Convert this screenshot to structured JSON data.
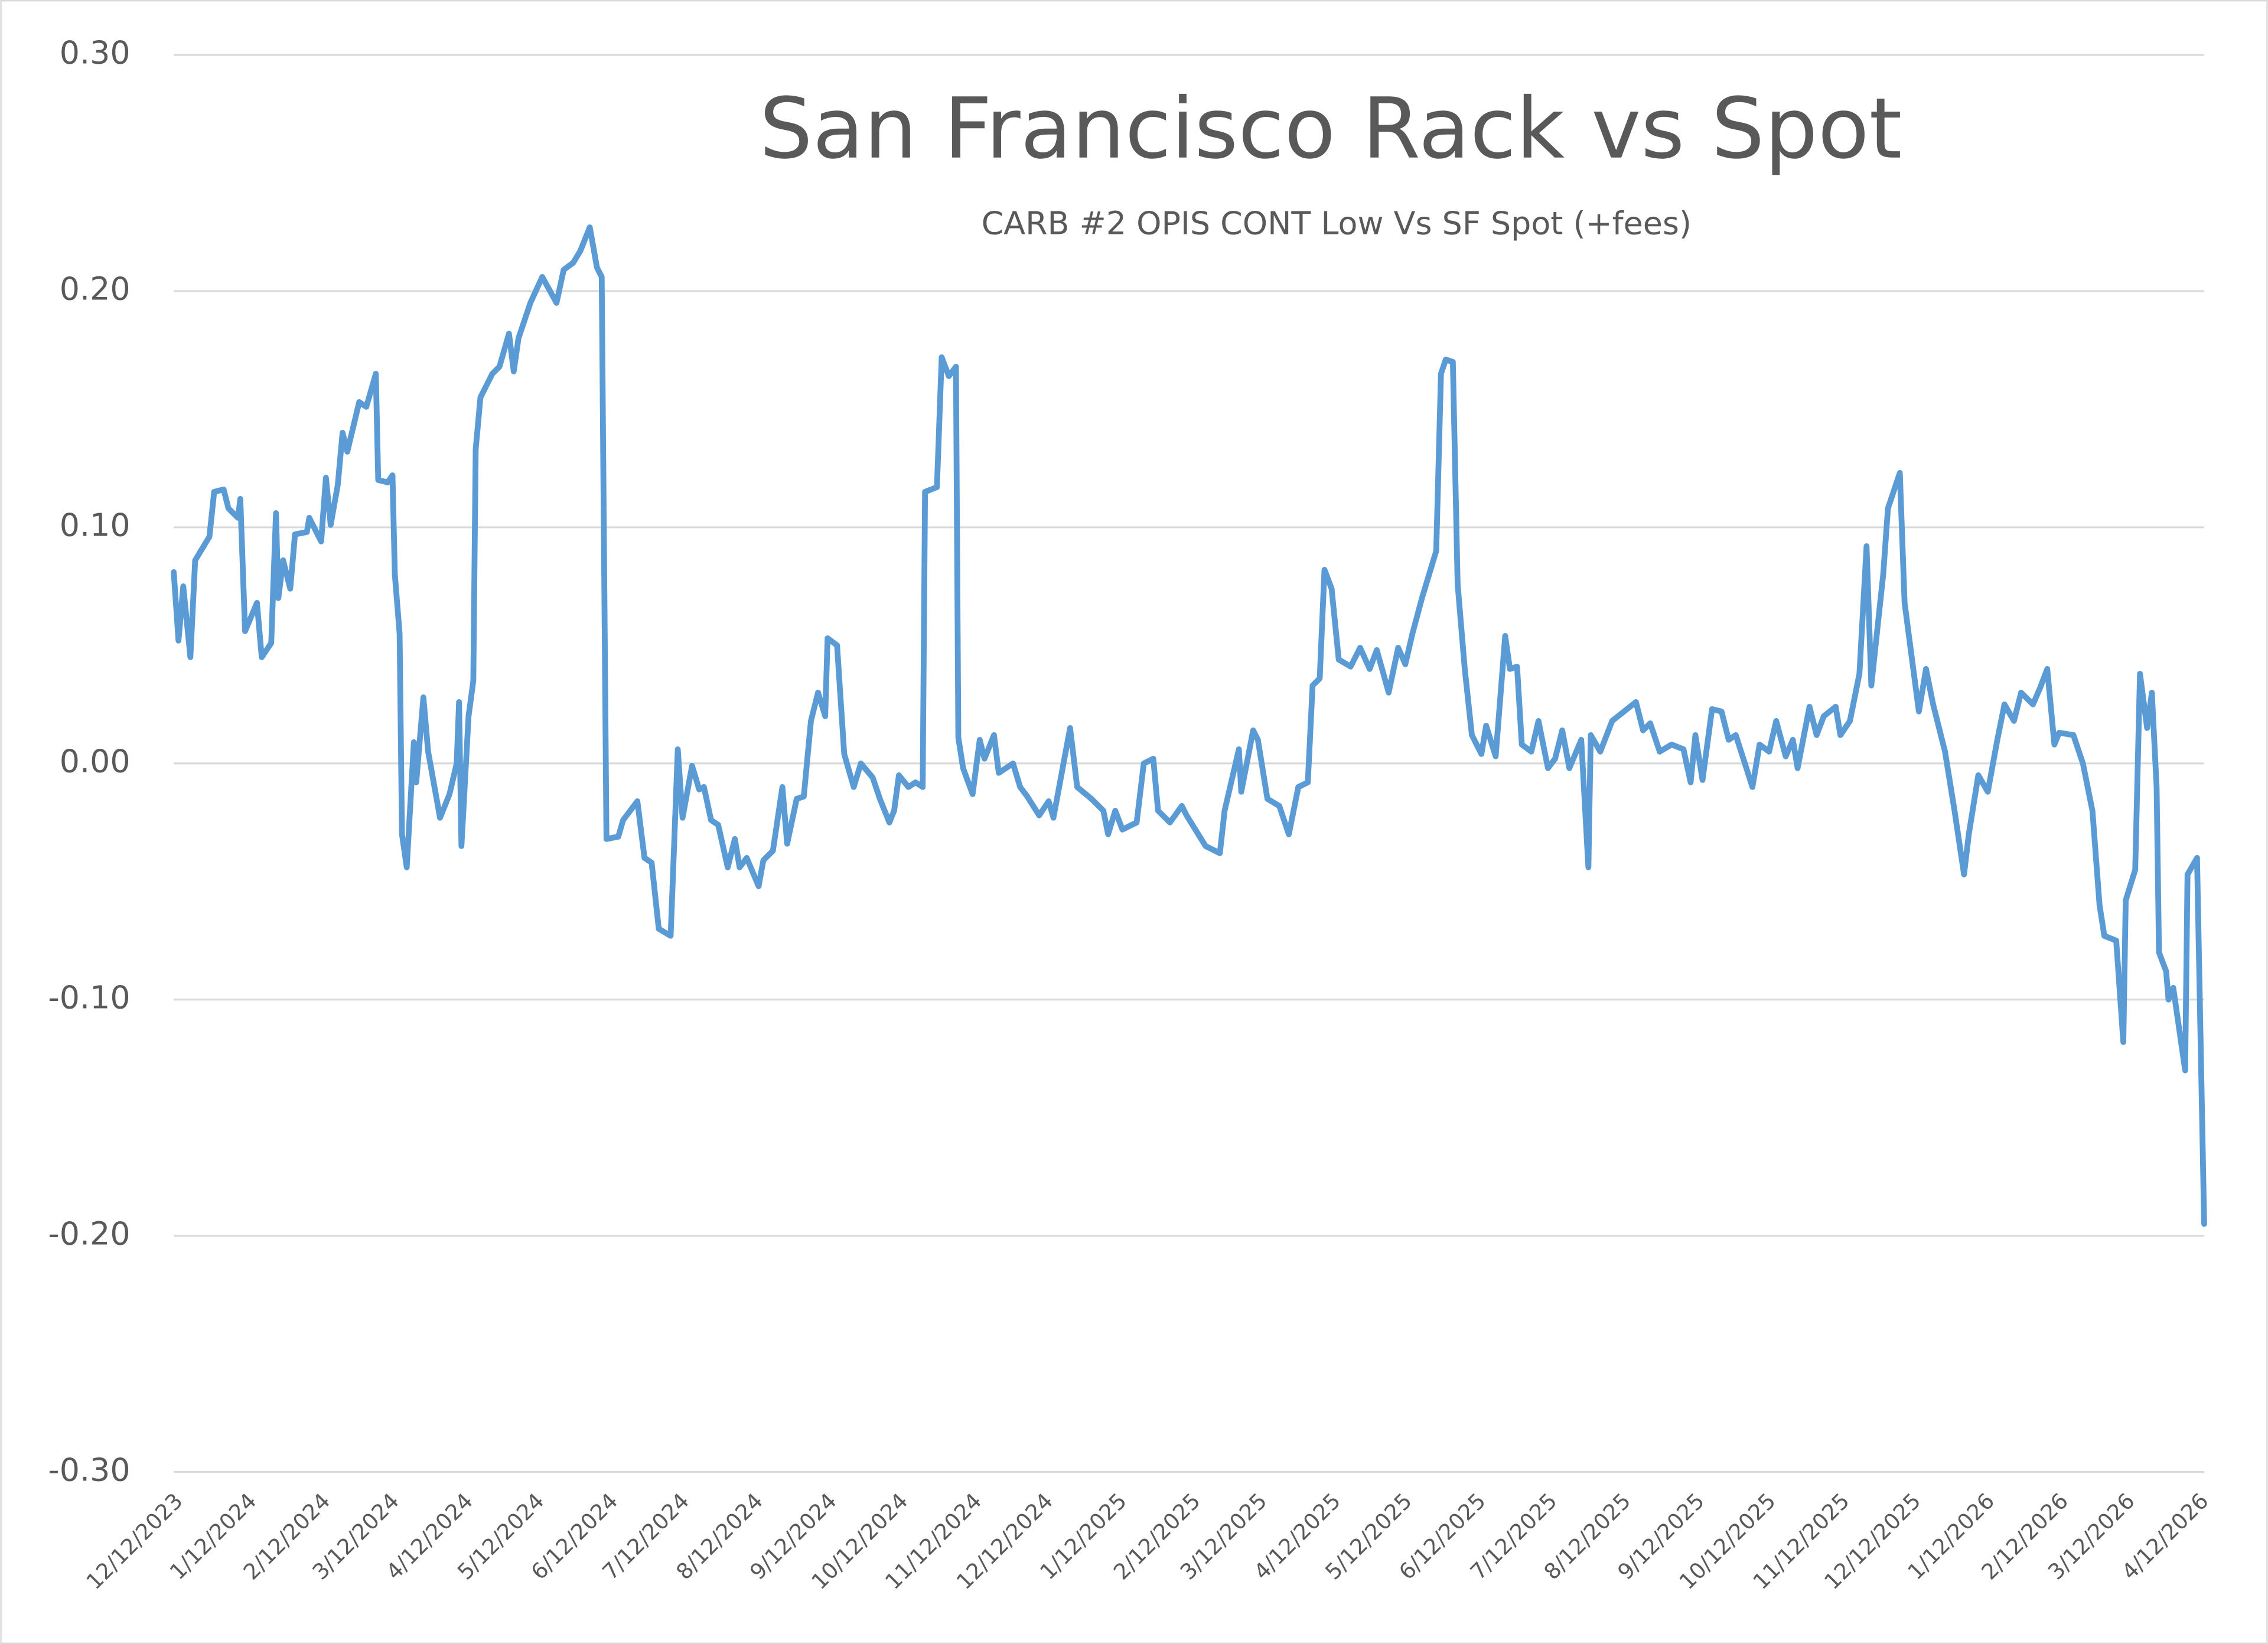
{
  "chart_data": {
    "type": "line",
    "title": "San Francisco Rack vs Spot",
    "subtitle": "CARB #2 OPIS CONT Low Vs SF Spot (+fees)",
    "color": "#5b9bd5",
    "grid": true,
    "ylim": [
      -0.3,
      0.3
    ],
    "yticks": [
      {
        "value": 0.3,
        "label": "0.30"
      },
      {
        "value": 0.2,
        "label": "0.20"
      },
      {
        "value": 0.1,
        "label": "0.10"
      },
      {
        "value": 0,
        "label": "0.00"
      },
      {
        "value": -0.1,
        "label": "-0.10"
      },
      {
        "value": -0.2,
        "label": "-0.20"
      },
      {
        "value": -0.3,
        "label": "-0.30"
      }
    ],
    "xlim": [
      "12/12/2023",
      "4/14/2026"
    ],
    "xticks": [
      "12/12/2023",
      "1/12/2024",
      "2/12/2024",
      "3/12/2024",
      "4/12/2024",
      "5/12/2024",
      "6/12/2024",
      "7/12/2024",
      "8/12/2024",
      "9/12/2024",
      "10/12/2024",
      "11/12/2024",
      "12/12/2024",
      "1/12/2025",
      "2/12/2025",
      "3/12/2025",
      "4/12/2025",
      "5/12/2025",
      "6/12/2025",
      "7/12/2025",
      "8/12/2025",
      "9/12/2025",
      "10/12/2025",
      "11/12/2025",
      "12/12/2025",
      "1/12/2026",
      "2/12/2026",
      "3/12/2026",
      "4/12/2026"
    ],
    "x": [
      "12/12/2023",
      "12/14/2023",
      "12/16/2023",
      "12/19/2023",
      "12/21/2023",
      "12/27/2023",
      "12/29/2023",
      "1/2/2024",
      "1/4/2024",
      "1/8/2024",
      "1/9/2024",
      "1/11/2024",
      "1/16/2024",
      "1/18/2024",
      "1/22/2024",
      "1/24/2024",
      "1/25/2024",
      "1/27/2024",
      "1/30/2024",
      "2/1/2024",
      "2/6/2024",
      "2/7/2024",
      "2/12/2024",
      "2/14/2024",
      "2/16/2024",
      "2/19/2024",
      "2/21/2024",
      "2/23/2024",
      "2/28/2024",
      "3/2/2024",
      "3/6/2024",
      "3/7/2024",
      "3/11/2024",
      "3/13/2024",
      "3/14/2024",
      "3/16/2024",
      "3/17/2024",
      "3/19/2024",
      "3/22/2024",
      "3/23/2024",
      "3/26/2024",
      "3/28/2024",
      "4/2/2024",
      "4/6/2024",
      "4/9/2024",
      "4/10/2024",
      "4/11/2024",
      "4/14/2024",
      "4/16/2024",
      "4/17/2024",
      "4/19/2024",
      "4/24/2024",
      "4/27/2024",
      "5/1/2024",
      "5/3/2024",
      "5/5/2024",
      "5/10/2024",
      "5/15/2024",
      "5/21/2024",
      "5/24/2024",
      "5/28/2024",
      "5/31/2024",
      "6/4/2024",
      "6/7/2024",
      "6/9/2024",
      "6/11/2024",
      "6/16/2024",
      "6/18/2024",
      "6/24/2024",
      "6/27/2024",
      "6/30/2024",
      "7/3/2024",
      "7/8/2024",
      "7/11/2024",
      "7/13/2024",
      "7/17/2024",
      "7/20/2024",
      "7/22/2024",
      "7/25/2024",
      "7/28/2024",
      "8/1/2024",
      "8/4/2024",
      "8/6/2024",
      "8/9/2024",
      "8/14/2024",
      "8/16/2024",
      "8/20/2024",
      "8/24/2024",
      "8/26/2024",
      "8/30/2024",
      "9/2/2024",
      "9/5/2024",
      "9/8/2024",
      "9/11/2024",
      "9/12/2024",
      "9/16/2024",
      "9/19/2024",
      "9/23/2024",
      "9/26/2024",
      "10/1/2024",
      "10/4/2024",
      "10/8/2024",
      "10/10/2024",
      "10/12/2024",
      "10/16/2024",
      "10/19/2024",
      "10/22/2024",
      "10/23/2024",
      "10/28/2024",
      "10/30/2024",
      "11/2/2024",
      "11/5/2024",
      "11/6/2024",
      "11/8/2024",
      "11/12/2024",
      "11/15/2024",
      "11/17/2024",
      "11/21/2024",
      "11/23/2024",
      "11/29/2024",
      "12/2/2024",
      "12/5/2024",
      "12/10/2024",
      "12/14/2024",
      "12/16/2024",
      "12/23/2024",
      "12/26/2024",
      "1/1/2025",
      "1/6/2025",
      "1/8/2025",
      "1/11/2025",
      "1/14/2025",
      "1/20/2025",
      "1/23/2025",
      "1/27/2025",
      "1/29/2025",
      "2/3/2025",
      "2/8/2025",
      "2/10/2025",
      "2/18/2025",
      "2/24/2025",
      "2/26/2025",
      "3/4/2025",
      "3/5/2025",
      "3/10/2025",
      "3/12/2025",
      "3/16/2025",
      "3/21/2025",
      "3/25/2025",
      "3/29/2025",
      "4/2/2025",
      "4/4/2025",
      "4/7/2025",
      "4/9/2025",
      "4/12/2025",
      "4/15/2025",
      "4/20/2025",
      "4/24/2025",
      "4/28/2025",
      "5/1/2025",
      "5/6/2025",
      "5/10/2025",
      "5/13/2025",
      "5/16/2025",
      "5/20/2025",
      "5/26/2025",
      "5/28/2025",
      "5/30/2025",
      "6/2/2025",
      "6/4/2025",
      "6/7/2025",
      "6/10/2025",
      "6/14/2025",
      "6/16/2025",
      "6/20/2025",
      "6/24/2025",
      "6/26/2025",
      "6/29/2025",
      "7/1/2025",
      "7/5/2025",
      "7/8/2025",
      "7/12/2025",
      "7/15/2025",
      "7/18/2025",
      "7/21/2025",
      "7/26/2025",
      "7/29/2025",
      "7/30/2025",
      "8/3/2025",
      "8/8/2025",
      "8/18/2025",
      "8/21/2025",
      "8/24/2025",
      "8/28/2025",
      "9/2/2025",
      "9/7/2025",
      "9/10/2025",
      "9/12/2025",
      "9/15/2025",
      "9/19/2025",
      "9/23/2025",
      "9/26/2025",
      "9/29/2025",
      "10/6/2025",
      "10/9/2025",
      "10/13/2025",
      "10/16/2025",
      "10/20/2025",
      "10/23/2025",
      "10/25/2025",
      "10/30/2025",
      "11/2/2025",
      "11/5/2025",
      "11/10/2025",
      "11/12/2025",
      "11/16/2025",
      "11/20/2025",
      "11/23/2025",
      "11/25/2025",
      "11/30/2025",
      "12/2/2025",
      "12/7/2025",
      "12/9/2025",
      "12/12/2025",
      "12/15/2025",
      "12/18/2025",
      "12/21/2025",
      "12/26/2025",
      "12/30/2025",
      "1/3/2026",
      "1/5/2026",
      "1/9/2026",
      "1/13/2026",
      "1/17/2026",
      "1/20/2026",
      "1/24/2026",
      "1/27/2026",
      "2/1/2026",
      "2/4/2026",
      "2/7/2026",
      "2/10/2026",
      "2/12/2026",
      "2/18/2026",
      "2/22/2026",
      "2/26/2026",
      "3/1/2026",
      "3/3/2026",
      "3/8/2026",
      "3/11/2026",
      "3/12/2026",
      "3/16/2026",
      "3/18/2026",
      "3/21/2026",
      "3/23/2026",
      "3/25/2026",
      "3/26/2026",
      "3/29/2026",
      "3/30/2026",
      "4/1/2026",
      "4/6/2026",
      "4/7/2026",
      "4/11/2026",
      "4/14/2026"
    ],
    "values": [
      0.081,
      0.052,
      0.075,
      0.045,
      0.086,
      0.096,
      0.115,
      0.116,
      0.108,
      0.104,
      0.112,
      0.056,
      0.068,
      0.045,
      0.051,
      0.106,
      0.07,
      0.086,
      0.074,
      0.097,
      0.098,
      0.104,
      0.094,
      0.121,
      0.101,
      0.118,
      0.14,
      0.132,
      0.153,
      0.151,
      0.165,
      0.12,
      0.119,
      0.122,
      0.08,
      0.055,
      -0.03,
      -0.044,
      0.009,
      -0.008,
      0.028,
      0.005,
      -0.023,
      -0.013,
      0.0,
      0.026,
      -0.035,
      0.02,
      0.035,
      0.133,
      0.155,
      0.165,
      0.168,
      0.182,
      0.166,
      0.18,
      0.195,
      0.206,
      0.195,
      0.209,
      0.212,
      0.217,
      0.227,
      0.21,
      0.206,
      -0.032,
      -0.031,
      -0.024,
      -0.016,
      -0.04,
      -0.042,
      -0.07,
      -0.073,
      0.006,
      -0.023,
      -0.001,
      -0.011,
      -0.01,
      -0.024,
      -0.026,
      -0.044,
      -0.032,
      -0.044,
      -0.04,
      -0.052,
      -0.041,
      -0.037,
      -0.01,
      -0.034,
      -0.015,
      -0.014,
      0.018,
      0.03,
      0.02,
      0.053,
      0.05,
      0.004,
      -0.01,
      0.0,
      -0.006,
      -0.015,
      -0.025,
      -0.02,
      -0.005,
      -0.01,
      -0.008,
      -0.01,
      0.115,
      0.117,
      0.172,
      0.164,
      0.168,
      0.011,
      -0.002,
      -0.013,
      0.01,
      0.002,
      0.012,
      -0.004,
      0.0,
      -0.01,
      -0.014,
      -0.022,
      -0.016,
      -0.023,
      0.015,
      -0.01,
      -0.015,
      -0.02,
      -0.03,
      -0.02,
      -0.028,
      -0.025,
      0.0,
      0.002,
      -0.02,
      -0.025,
      -0.018,
      -0.022,
      -0.035,
      -0.038,
      -0.02,
      0.006,
      -0.012,
      0.014,
      0.01,
      -0.015,
      -0.018,
      -0.03,
      -0.01,
      -0.008,
      0.033,
      0.036,
      0.082,
      0.074,
      0.044,
      0.041,
      0.049,
      0.04,
      0.048,
      0.03,
      0.049,
      0.042,
      0.055,
      0.07,
      0.09,
      0.165,
      0.171,
      0.17,
      0.076,
      0.04,
      0.012,
      0.004,
      0.016,
      0.003,
      0.054,
      0.04,
      0.041,
      0.008,
      0.005,
      0.018,
      -0.002,
      0.002,
      0.014,
      -0.002,
      0.01,
      -0.044,
      0.012,
      0.005,
      0.018,
      0.026,
      0.014,
      0.017,
      0.005,
      0.008,
      0.006,
      -0.008,
      0.012,
      -0.007,
      0.023,
      0.022,
      0.01,
      0.012,
      -0.01,
      0.008,
      0.005,
      0.018,
      0.003,
      0.01,
      -0.002,
      0.024,
      0.012,
      0.02,
      0.024,
      0.012,
      0.018,
      0.038,
      0.092,
      0.033,
      0.08,
      0.108,
      0.123,
      0.068,
      0.045,
      0.022,
      0.04,
      0.025,
      0.005,
      -0.02,
      -0.047,
      -0.03,
      -0.005,
      -0.012,
      0.01,
      0.025,
      0.018,
      0.03,
      0.025,
      0.032,
      0.04,
      0.008,
      0.013,
      0.012,
      0.0,
      -0.02,
      -0.06,
      -0.073,
      -0.075,
      -0.118,
      -0.058,
      -0.045,
      0.038,
      0.015,
      0.03,
      -0.01,
      -0.08,
      -0.088,
      -0.1,
      -0.095,
      -0.13,
      -0.047,
      -0.04,
      -0.195
    ]
  }
}
